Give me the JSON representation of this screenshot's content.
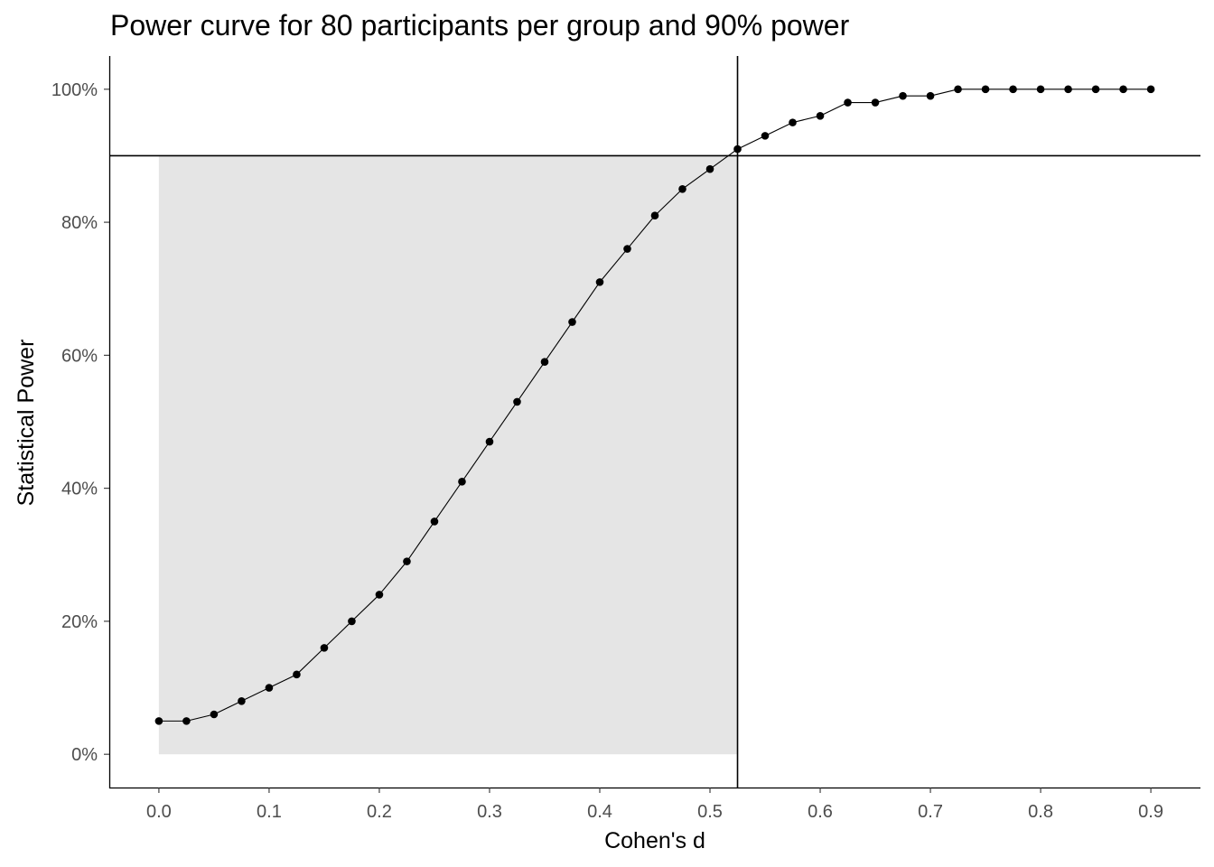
{
  "chart_data": {
    "type": "line",
    "title": "Power curve for 80 participants per group and 90% power",
    "xlabel": "Cohen's d",
    "ylabel": "Statistical Power",
    "xlim": [
      -0.045,
      0.945
    ],
    "ylim": [
      -0.05,
      1.05
    ],
    "x_ticks": [
      0.0,
      0.1,
      0.2,
      0.3,
      0.4,
      0.5,
      0.6,
      0.7,
      0.8,
      0.9
    ],
    "x_tick_labels": [
      "0.0",
      "0.1",
      "0.2",
      "0.3",
      "0.4",
      "0.5",
      "0.6",
      "0.7",
      "0.8",
      "0.9"
    ],
    "y_ticks": [
      0,
      0.2,
      0.4,
      0.6,
      0.8,
      1.0
    ],
    "y_tick_labels": [
      "0%",
      "20%",
      "40%",
      "60%",
      "80%",
      "100%"
    ],
    "grid": false,
    "series": [
      {
        "x": [
          0.0,
          0.025,
          0.05,
          0.075,
          0.1,
          0.125,
          0.15,
          0.175,
          0.2,
          0.225,
          0.25,
          0.275,
          0.3,
          0.325,
          0.35,
          0.375,
          0.4,
          0.425,
          0.45,
          0.475,
          0.5,
          0.525,
          0.55,
          0.575,
          0.6,
          0.625,
          0.65,
          0.675,
          0.7,
          0.725,
          0.75,
          0.775,
          0.8,
          0.825,
          0.85,
          0.875,
          0.9
        ],
        "values": [
          0.05,
          0.05,
          0.06,
          0.08,
          0.1,
          0.12,
          0.16,
          0.2,
          0.24,
          0.29,
          0.35,
          0.41,
          0.47,
          0.53,
          0.59,
          0.65,
          0.71,
          0.76,
          0.81,
          0.85,
          0.88,
          0.91,
          0.93,
          0.95,
          0.96,
          0.98,
          0.98,
          0.99,
          0.99,
          1.0,
          1.0,
          1.0,
          1.0,
          1.0,
          1.0,
          1.0,
          1.0
        ],
        "color": "#000000"
      }
    ],
    "annotations": {
      "hline_y": 0.9,
      "vline_x": 0.525,
      "shaded_region": {
        "x": [
          0.0,
          0.525
        ],
        "y": [
          0,
          0.9
        ],
        "color": "#e5e5e5"
      }
    }
  }
}
